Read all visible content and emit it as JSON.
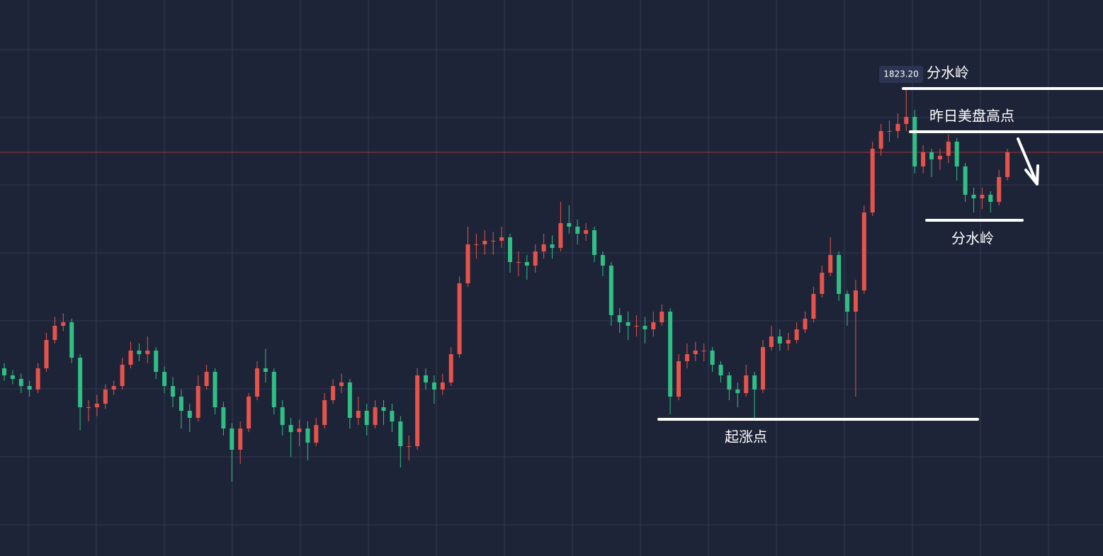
{
  "chart_data": {
    "type": "candlestick",
    "up_color": "#e5534b",
    "down_color": "#2fbf85",
    "current_price_color": "#a8323a",
    "level_color": "#ffffff",
    "ylim": [
      1810.0,
      1825.7
    ],
    "current_price": 1821.4,
    "price_label": {
      "value": 1823.2,
      "label": "1823.20"
    },
    "levels": [
      {
        "value": 1823.2,
        "text": "分水岭"
      },
      {
        "value": 1821.98,
        "text": "昨日美盘高点"
      },
      {
        "value": 1819.48,
        "text": "分水岭"
      },
      {
        "value": 1813.86,
        "text": "起涨点"
      }
    ],
    "open": [
      1815.3,
      1815.1,
      1815.0,
      1814.8,
      1814.7,
      1815.3,
      1816.1,
      1816.5,
      1816.6,
      1815.6,
      1814.2,
      1814.2,
      1814.3,
      1814.7,
      1814.8,
      1815.4,
      1815.8,
      1815.7,
      1815.8,
      1815.2,
      1814.8,
      1814.5,
      1814.1,
      1813.9,
      1814.8,
      1815.2,
      1814.2,
      1813.6,
      1813.0,
      1813.6,
      1814.5,
      1815.3,
      1815.2,
      1814.2,
      1813.7,
      1813.5,
      1813.6,
      1813.2,
      1813.7,
      1814.4,
      1814.8,
      1814.9,
      1813.9,
      1814.1,
      1813.7,
      1814.2,
      1814.1,
      1813.8,
      1813.1,
      1813.1,
      1815.1,
      1814.9,
      1814.7,
      1814.9,
      1815.7,
      1817.7,
      1818.8,
      1818.8,
      1818.9,
      1818.9,
      1819.0,
      1818.3,
      1818.3,
      1818.2,
      1818.6,
      1818.8,
      1818.7,
      1819.4,
      1819.3,
      1819.1,
      1819.2,
      1818.5,
      1818.2,
      1816.8,
      1816.6,
      1816.5,
      1816.5,
      1816.4,
      1816.6,
      1816.9,
      1814.5,
      1815.5,
      1815.7,
      1815.8,
      1815.8,
      1815.4,
      1815.1,
      1814.7,
      1814.6,
      1815.1,
      1814.7,
      1815.9,
      1816.2,
      1816.0,
      1816.1,
      1816.4,
      1816.7,
      1817.4,
      1818.0,
      1818.5,
      1817.4,
      1816.9,
      1817.5,
      1819.7,
      1821.5,
      1822.0,
      1822.0,
      1822.2,
      1822.4,
      1821.0,
      1821.4,
      1821.2,
      1821.3,
      1821.7,
      1821.0,
      1820.2,
      1820.1,
      1820.2,
      1820.0,
      1820.7
    ],
    "high": [
      1815.45,
      1815.25,
      1815.15,
      1814.95,
      1815.45,
      1816.3,
      1816.75,
      1816.85,
      1816.7,
      1815.7,
      1814.4,
      1814.55,
      1814.85,
      1814.95,
      1815.6,
      1816.05,
      1816.0,
      1816.2,
      1815.9,
      1815.35,
      1815.05,
      1814.7,
      1814.3,
      1815.1,
      1815.4,
      1815.3,
      1814.35,
      1813.75,
      1813.8,
      1814.6,
      1815.5,
      1815.85,
      1815.3,
      1814.4,
      1813.9,
      1813.85,
      1813.8,
      1813.9,
      1814.6,
      1815.0,
      1815.15,
      1815.0,
      1814.5,
      1814.3,
      1814.4,
      1814.4,
      1814.3,
      1813.95,
      1813.4,
      1815.3,
      1815.3,
      1815.1,
      1815.15,
      1815.9,
      1817.9,
      1819.3,
      1819.1,
      1819.2,
      1819.15,
      1819.3,
      1819.1,
      1818.6,
      1818.5,
      1818.8,
      1819.1,
      1819.05,
      1820.0,
      1819.9,
      1819.5,
      1819.4,
      1819.3,
      1818.6,
      1818.3,
      1817.0,
      1816.9,
      1816.8,
      1816.75,
      1816.9,
      1817.1,
      1817.0,
      1815.7,
      1816.0,
      1816.05,
      1816.0,
      1815.9,
      1815.5,
      1815.2,
      1814.9,
      1815.4,
      1815.2,
      1816.1,
      1816.5,
      1816.4,
      1816.3,
      1816.6,
      1816.9,
      1817.6,
      1818.2,
      1819.0,
      1818.6,
      1817.5,
      1817.8,
      1819.9,
      1821.7,
      1822.2,
      1822.3,
      1822.5,
      1823.2,
      1822.6,
      1821.6,
      1821.5,
      1821.5,
      1821.9,
      1821.8,
      1821.1,
      1820.4,
      1820.4,
      1820.3,
      1820.9,
      1821.5
    ],
    "low": [
      1814.95,
      1814.85,
      1814.6,
      1814.5,
      1814.6,
      1815.2,
      1816.0,
      1816.35,
      1815.45,
      1813.55,
      1813.8,
      1813.95,
      1814.15,
      1814.55,
      1814.7,
      1815.3,
      1815.5,
      1815.45,
      1815.0,
      1814.6,
      1814.2,
      1813.6,
      1813.5,
      1813.8,
      1814.7,
      1814.0,
      1813.4,
      1812.1,
      1812.6,
      1813.5,
      1814.4,
      1814.9,
      1814.0,
      1813.4,
      1812.8,
      1813.1,
      1812.7,
      1813.1,
      1813.6,
      1814.3,
      1814.6,
      1813.6,
      1813.7,
      1813.4,
      1813.6,
      1813.7,
      1813.5,
      1812.5,
      1812.7,
      1813.0,
      1814.7,
      1814.3,
      1814.55,
      1814.8,
      1815.6,
      1817.6,
      1818.4,
      1818.5,
      1818.5,
      1818.7,
      1818.0,
      1817.9,
      1817.8,
      1818.0,
      1818.4,
      1818.4,
      1818.6,
      1819.1,
      1818.8,
      1818.9,
      1818.3,
      1817.9,
      1816.5,
      1816.3,
      1816.1,
      1816.2,
      1816.0,
      1816.2,
      1816.5,
      1814.0,
      1814.4,
      1815.3,
      1815.5,
      1815.5,
      1815.2,
      1814.9,
      1814.4,
      1814.2,
      1814.5,
      1813.9,
      1814.6,
      1815.8,
      1815.8,
      1815.8,
      1816.0,
      1816.3,
      1816.6,
      1817.3,
      1817.9,
      1817.2,
      1816.5,
      1814.5,
      1817.4,
      1819.6,
      1821.3,
      1821.7,
      1821.8,
      1822.0,
      1820.8,
      1820.8,
      1820.7,
      1820.9,
      1821.1,
      1820.6,
      1820.0,
      1819.7,
      1819.8,
      1819.7,
      1819.9,
      1820.6
    ],
    "close": [
      1815.1,
      1815.0,
      1814.8,
      1814.7,
      1815.3,
      1816.1,
      1816.5,
      1816.6,
      1815.6,
      1814.2,
      1814.2,
      1814.3,
      1814.7,
      1814.8,
      1815.4,
      1815.8,
      1815.7,
      1815.8,
      1815.2,
      1814.8,
      1814.5,
      1814.1,
      1813.9,
      1814.8,
      1815.2,
      1814.2,
      1813.6,
      1813.0,
      1813.6,
      1814.5,
      1815.3,
      1815.2,
      1814.2,
      1813.7,
      1813.5,
      1813.6,
      1813.2,
      1813.7,
      1814.4,
      1814.8,
      1814.9,
      1813.9,
      1814.1,
      1813.7,
      1814.2,
      1814.1,
      1813.8,
      1813.1,
      1813.1,
      1815.1,
      1814.9,
      1814.7,
      1814.9,
      1815.7,
      1817.7,
      1818.8,
      1818.8,
      1818.9,
      1818.9,
      1819.0,
      1818.3,
      1818.3,
      1818.2,
      1818.6,
      1818.8,
      1818.7,
      1819.4,
      1819.3,
      1819.1,
      1819.2,
      1818.5,
      1818.2,
      1816.8,
      1816.6,
      1816.5,
      1816.5,
      1816.4,
      1816.6,
      1816.9,
      1814.5,
      1815.5,
      1815.7,
      1815.8,
      1815.8,
      1815.4,
      1815.1,
      1814.7,
      1814.6,
      1815.1,
      1814.7,
      1815.9,
      1816.2,
      1816.0,
      1816.1,
      1816.4,
      1816.7,
      1817.4,
      1818.0,
      1818.5,
      1817.4,
      1816.9,
      1817.5,
      1819.7,
      1821.5,
      1822.0,
      1822.0,
      1822.2,
      1822.4,
      1821.0,
      1821.4,
      1821.2,
      1821.3,
      1821.7,
      1821.0,
      1820.2,
      1820.1,
      1820.2,
      1820.0,
      1820.7,
      1821.4
    ]
  }
}
